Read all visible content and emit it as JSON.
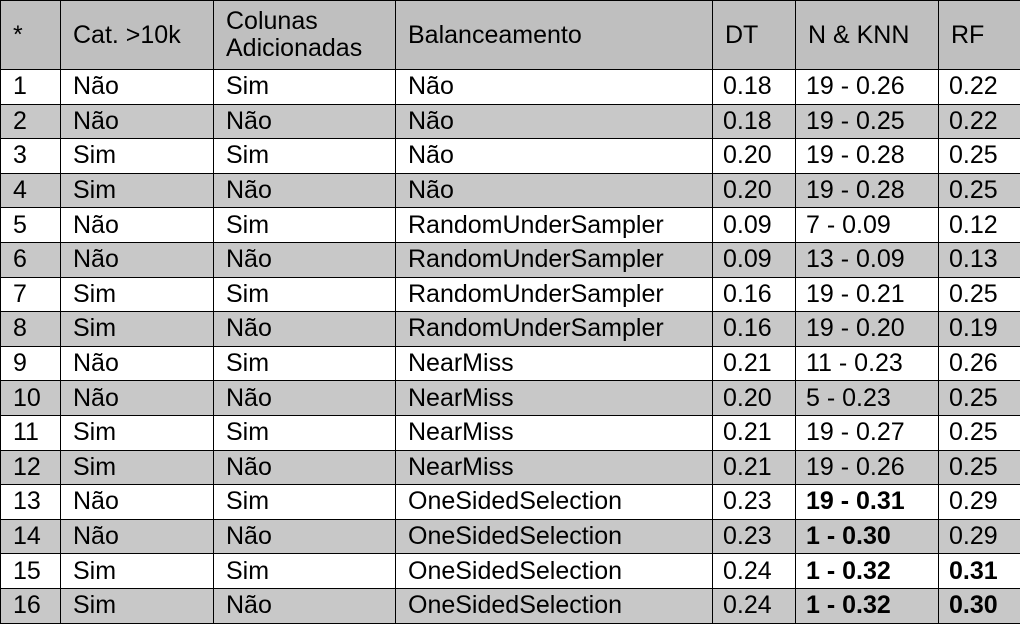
{
  "table": {
    "headers": [
      "*",
      "Cat. >10k",
      "Colunas\nAdicionadas",
      "Balanceamento",
      "DT",
      "N & KNN",
      "RF"
    ],
    "rows": [
      {
        "cells": [
          "1",
          "Não",
          "Sim",
          "Não",
          "0.18",
          "19 - 0.26",
          "0.22"
        ],
        "bold": [
          false,
          false,
          false,
          false,
          false,
          false,
          false
        ]
      },
      {
        "cells": [
          "2",
          "Não",
          "Não",
          "Não",
          "0.18",
          "19 - 0.25",
          "0.22"
        ],
        "bold": [
          false,
          false,
          false,
          false,
          false,
          false,
          false
        ]
      },
      {
        "cells": [
          "3",
          "Sim",
          "Sim",
          "Não",
          "0.20",
          "19 - 0.28",
          "0.25"
        ],
        "bold": [
          false,
          false,
          false,
          false,
          false,
          false,
          false
        ]
      },
      {
        "cells": [
          "4",
          "Sim",
          "Não",
          "Não",
          "0.20",
          "19 - 0.28",
          "0.25"
        ],
        "bold": [
          false,
          false,
          false,
          false,
          false,
          false,
          false
        ]
      },
      {
        "cells": [
          "5",
          "Não",
          "Sim",
          "RandomUnderSampler",
          "0.09",
          "7 - 0.09",
          "0.12"
        ],
        "bold": [
          false,
          false,
          false,
          false,
          false,
          false,
          false
        ]
      },
      {
        "cells": [
          "6",
          "Não",
          "Não",
          "RandomUnderSampler",
          "0.09",
          "13 - 0.09",
          "0.13"
        ],
        "bold": [
          false,
          false,
          false,
          false,
          false,
          false,
          false
        ]
      },
      {
        "cells": [
          "7",
          "Sim",
          "Sim",
          "RandomUnderSampler",
          "0.16",
          "19 - 0.21",
          "0.25"
        ],
        "bold": [
          false,
          false,
          false,
          false,
          false,
          false,
          false
        ]
      },
      {
        "cells": [
          "8",
          "Sim",
          "Não",
          "RandomUnderSampler",
          "0.16",
          "19 - 0.20",
          "0.19"
        ],
        "bold": [
          false,
          false,
          false,
          false,
          false,
          false,
          false
        ]
      },
      {
        "cells": [
          "9",
          "Não",
          "Sim",
          "NearMiss",
          "0.21",
          "11 - 0.23",
          "0.26"
        ],
        "bold": [
          false,
          false,
          false,
          false,
          false,
          false,
          false
        ]
      },
      {
        "cells": [
          "10",
          "Não",
          "Não",
          "NearMiss",
          "0.20",
          "5 - 0.23",
          "0.25"
        ],
        "bold": [
          false,
          false,
          false,
          false,
          false,
          false,
          false
        ]
      },
      {
        "cells": [
          "11",
          "Sim",
          "Sim",
          "NearMiss",
          "0.21",
          "19 - 0.27",
          "0.25"
        ],
        "bold": [
          false,
          false,
          false,
          false,
          false,
          false,
          false
        ]
      },
      {
        "cells": [
          "12",
          "Sim",
          "Não",
          "NearMiss",
          "0.21",
          "19 - 0.26",
          "0.25"
        ],
        "bold": [
          false,
          false,
          false,
          false,
          false,
          false,
          false
        ]
      },
      {
        "cells": [
          "13",
          "Não",
          "Sim",
          "OneSidedSelection",
          "0.23",
          "19 - 0.31",
          "0.29"
        ],
        "bold": [
          false,
          false,
          false,
          false,
          false,
          true,
          false
        ]
      },
      {
        "cells": [
          "14",
          "Não",
          "Não",
          "OneSidedSelection",
          "0.23",
          "1 - 0.30",
          "0.29"
        ],
        "bold": [
          false,
          false,
          false,
          false,
          false,
          true,
          false
        ]
      },
      {
        "cells": [
          "15",
          "Sim",
          "Sim",
          "OneSidedSelection",
          "0.24",
          "1 - 0.32",
          "0.31"
        ],
        "bold": [
          false,
          false,
          false,
          false,
          false,
          true,
          true
        ]
      },
      {
        "cells": [
          "16",
          "Sim",
          "Não",
          "OneSidedSelection",
          "0.24",
          "1 - 0.32",
          "0.30"
        ],
        "bold": [
          false,
          false,
          false,
          false,
          false,
          true,
          true
        ]
      }
    ]
  },
  "colors": {
    "header_bg": "#bfbfbf",
    "alt_row_bg": "#c8c8c8",
    "row_bg": "#ffffff",
    "border": "#000000"
  }
}
